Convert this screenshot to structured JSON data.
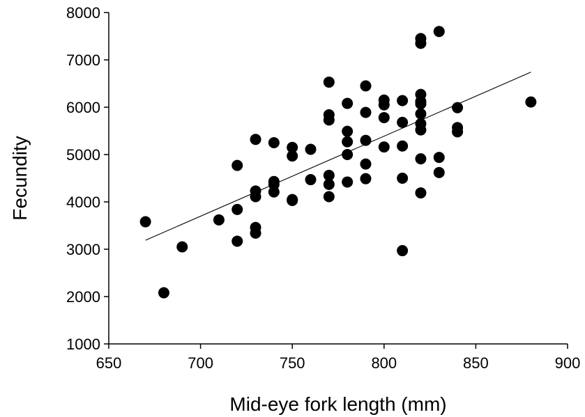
{
  "chart_data": {
    "type": "scatter",
    "title": "",
    "xlabel": "Mid-eye fork length (mm)",
    "ylabel": "Fecundity",
    "xlim": [
      650,
      900
    ],
    "ylim": [
      1000,
      8000
    ],
    "xticks": [
      650,
      700,
      750,
      800,
      850,
      900
    ],
    "yticks": [
      1000,
      2000,
      3000,
      4000,
      5000,
      6000,
      7000,
      8000
    ],
    "grid": false,
    "legend": "none",
    "series": [
      {
        "marker": "filled-circle",
        "color": "#000000",
        "points": [
          [
            670,
            3580
          ],
          [
            680,
            2080
          ],
          [
            690,
            3050
          ],
          [
            710,
            3620
          ],
          [
            720,
            3170
          ],
          [
            720,
            3840
          ],
          [
            720,
            4770
          ],
          [
            730,
            3340
          ],
          [
            730,
            3460
          ],
          [
            730,
            4110
          ],
          [
            730,
            4230
          ],
          [
            730,
            5320
          ],
          [
            740,
            4210
          ],
          [
            740,
            4370
          ],
          [
            740,
            4430
          ],
          [
            740,
            5250
          ],
          [
            750,
            4030
          ],
          [
            750,
            4050
          ],
          [
            750,
            4970
          ],
          [
            750,
            5150
          ],
          [
            760,
            4470
          ],
          [
            760,
            5110
          ],
          [
            770,
            4110
          ],
          [
            770,
            4370
          ],
          [
            770,
            4560
          ],
          [
            770,
            5730
          ],
          [
            770,
            5840
          ],
          [
            770,
            6530
          ],
          [
            780,
            4420
          ],
          [
            780,
            5000
          ],
          [
            780,
            5270
          ],
          [
            780,
            5490
          ],
          [
            780,
            6080
          ],
          [
            790,
            4490
          ],
          [
            790,
            4800
          ],
          [
            790,
            5300
          ],
          [
            790,
            5890
          ],
          [
            790,
            6450
          ],
          [
            800,
            5160
          ],
          [
            800,
            5780
          ],
          [
            800,
            6050
          ],
          [
            800,
            6150
          ],
          [
            810,
            2970
          ],
          [
            810,
            4500
          ],
          [
            810,
            5180
          ],
          [
            810,
            5680
          ],
          [
            810,
            6140
          ],
          [
            820,
            4190
          ],
          [
            820,
            4910
          ],
          [
            820,
            5520
          ],
          [
            820,
            5650
          ],
          [
            820,
            5860
          ],
          [
            820,
            6070
          ],
          [
            820,
            6120
          ],
          [
            820,
            6270
          ],
          [
            820,
            7350
          ],
          [
            820,
            7450
          ],
          [
            830,
            4620
          ],
          [
            830,
            4940
          ],
          [
            830,
            7600
          ],
          [
            840,
            5480
          ],
          [
            840,
            5570
          ],
          [
            840,
            5990
          ],
          [
            880,
            6110
          ]
        ]
      }
    ],
    "trendline": {
      "type": "linear",
      "x": [
        670,
        880
      ],
      "y": [
        3190,
        6740
      ]
    }
  }
}
